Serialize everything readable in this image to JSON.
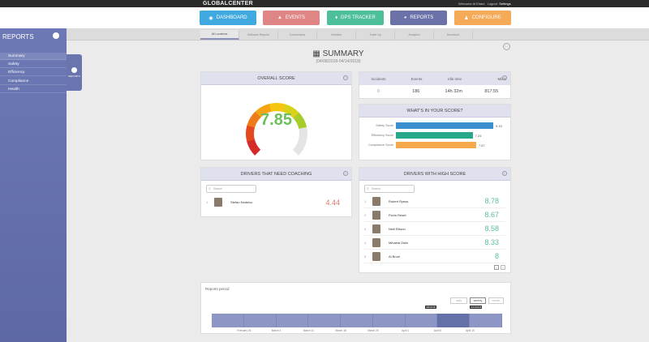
{
  "header": {
    "logo": "GLOBALCENTER",
    "welcome": "Welcome Al Eriani",
    "logout": "Logout",
    "settings": "Settings"
  },
  "nav": [
    {
      "label": "DASHBOARD",
      "color": "#3fa9e0",
      "icon": "globe-icon"
    },
    {
      "label": "EVENTS",
      "color": "#e08585",
      "icon": "warning-icon"
    },
    {
      "label": "GPS TRACKER",
      "color": "#4dbf9b",
      "icon": "pin-icon"
    },
    {
      "label": "REPORTS",
      "color": "#6a72a8",
      "icon": "chart-icon"
    },
    {
      "label": "CONFIGURE",
      "color": "#f5aa57",
      "icon": "user-icon"
    }
  ],
  "tabs": [
    "All Locations",
    "Software Reports",
    "Connections",
    "Vehicles",
    "Trade Up",
    "Analytics",
    "Download"
  ],
  "sidebar": {
    "title": "REPORTS",
    "items": [
      {
        "label": "Summary"
      },
      {
        "label": "Safety"
      },
      {
        "label": "Efficiency"
      },
      {
        "label": "Compliance"
      },
      {
        "label": "Health"
      }
    ],
    "float_label": "REPORTS"
  },
  "summary": {
    "title": "SUMMARY",
    "date_range": "(04/08/2018-04/14/2018)"
  },
  "overall": {
    "title": "OVERALL SCORE",
    "score": "7.85",
    "fraction": 0.785
  },
  "stats": {
    "headers": [
      "Incidents",
      "Events",
      "Idle time",
      "Miles"
    ],
    "values": [
      "0",
      "186",
      "14h 32m",
      "817.55"
    ]
  },
  "breakdown": {
    "title": "WHAT'S IN YOUR SCORE?",
    "items": [
      {
        "label": "Safety Score",
        "value": "9.19",
        "num": 9.19,
        "color": "#3b8fcf"
      },
      {
        "label": "Efficiency Score",
        "value": "7.24",
        "num": 7.24,
        "color": "#26a889"
      },
      {
        "label": "Compliance Score",
        "value": "7.57",
        "num": 7.57,
        "color": "#f5a94a"
      }
    ]
  },
  "coaching": {
    "title": "DRIVERS THAT NEED COACHING",
    "search_placeholder": "Search",
    "drivers": [
      {
        "rank": "1",
        "name": "Stefan Nedelcu",
        "score": "4.44"
      }
    ]
  },
  "high": {
    "title": "DRIVERS WITH HIGH SCORE",
    "search_placeholder": "Search",
    "drivers": [
      {
        "rank": "1",
        "name": "Robert Ryess",
        "score": "8.78"
      },
      {
        "rank": "2",
        "name": "Florin Reset",
        "score": "8.67"
      },
      {
        "rank": "3",
        "name": "Neill Ellison",
        "score": "8.58"
      },
      {
        "rank": "4",
        "name": "Mihaela Oslin",
        "score": "8.33"
      },
      {
        "rank": "5",
        "name": "Al Bruni",
        "score": "8"
      }
    ]
  },
  "period": {
    "title": "Reports period",
    "buttons": [
      "daily",
      "weekly",
      "month"
    ],
    "active": "weekly",
    "tooltip_start": "4/8/2018",
    "tooltip_end": "4/14/2018",
    "labels": [
      "February 26",
      "March 4",
      "March 11",
      "March 18",
      "March 25",
      "April 1",
      "April 8",
      "April 15"
    ],
    "selected_segment": 7
  }
}
